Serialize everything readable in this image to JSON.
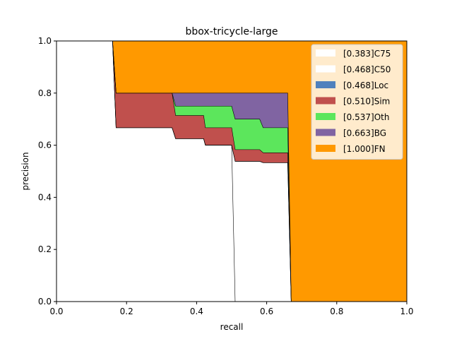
{
  "chart_data": {
    "type": "area",
    "title": "bbox-tricycle-large",
    "xlabel": "recall",
    "ylabel": "precision",
    "xlim": [
      0.0,
      1.0
    ],
    "ylim": [
      0.0,
      1.0
    ],
    "xticks": [
      "0.0",
      "0.2",
      "0.4",
      "0.6",
      "0.8",
      "1.0"
    ],
    "yticks": [
      "0.0",
      "0.2",
      "0.4",
      "0.6",
      "0.8",
      "1.0"
    ],
    "legend_position": "top-right",
    "series": [
      {
        "name": "[1.000]FN",
        "color": "#ff9900",
        "x": [
          0.0,
          1.0
        ],
        "y": [
          1.0,
          1.0
        ]
      },
      {
        "name": "[0.663]BG",
        "color": "#8064a2",
        "x": [
          0.0,
          0.16,
          0.17,
          0.33,
          0.34,
          0.42,
          0.425,
          0.5,
          0.51,
          0.58,
          0.59,
          0.66,
          0.67,
          1.0
        ],
        "y": [
          1.0,
          1.0,
          0.8,
          0.8,
          0.8,
          0.8,
          0.8,
          0.8,
          0.8,
          0.8,
          0.8,
          0.8,
          0.0,
          0.0
        ]
      },
      {
        "name": "[0.537]Oth",
        "color": "#5ce65c",
        "x": [
          0.0,
          0.16,
          0.17,
          0.33,
          0.34,
          0.42,
          0.425,
          0.5,
          0.51,
          0.58,
          0.59,
          0.66,
          0.67,
          1.0
        ],
        "y": [
          1.0,
          1.0,
          0.8,
          0.8,
          0.75,
          0.75,
          0.75,
          0.75,
          0.7,
          0.7,
          0.667,
          0.667,
          0.0,
          0.0
        ]
      },
      {
        "name": "[0.510]Sim",
        "color": "#c0504d",
        "x": [
          0.0,
          0.16,
          0.17,
          0.33,
          0.34,
          0.42,
          0.425,
          0.5,
          0.51,
          0.58,
          0.59,
          0.66,
          0.67,
          1.0
        ],
        "y": [
          1.0,
          1.0,
          0.8,
          0.8,
          0.714,
          0.714,
          0.667,
          0.667,
          0.583,
          0.583,
          0.571,
          0.571,
          0.0,
          0.0
        ]
      },
      {
        "name": "[0.468]Loc",
        "color": "#4f81bd",
        "x": [
          0.0,
          0.16,
          0.17,
          0.33,
          0.34,
          0.42,
          0.425,
          0.5,
          0.51,
          0.58,
          0.59,
          0.66,
          0.67,
          1.0
        ],
        "y": [
          1.0,
          1.0,
          0.667,
          0.667,
          0.625,
          0.625,
          0.6,
          0.6,
          0.538,
          0.538,
          0.533,
          0.533,
          0.0,
          0.0
        ]
      },
      {
        "name": "[0.468]C50",
        "color": "#ffffff",
        "x": [
          0.0,
          0.16,
          0.17,
          0.33,
          0.34,
          0.42,
          0.425,
          0.5,
          0.51,
          0.58,
          0.59,
          0.66,
          0.67,
          1.0
        ],
        "y": [
          1.0,
          1.0,
          0.667,
          0.667,
          0.625,
          0.625,
          0.6,
          0.6,
          0.538,
          0.538,
          0.533,
          0.533,
          0.0,
          0.0
        ]
      },
      {
        "name": "[0.383]C75",
        "color": "#ffffff",
        "x": [
          0.0,
          0.16,
          0.17,
          0.33,
          0.34,
          0.42,
          0.425,
          0.5,
          0.51,
          1.0
        ],
        "y": [
          1.0,
          1.0,
          0.667,
          0.667,
          0.625,
          0.625,
          0.6,
          0.6,
          0.0,
          0.0
        ]
      }
    ]
  }
}
